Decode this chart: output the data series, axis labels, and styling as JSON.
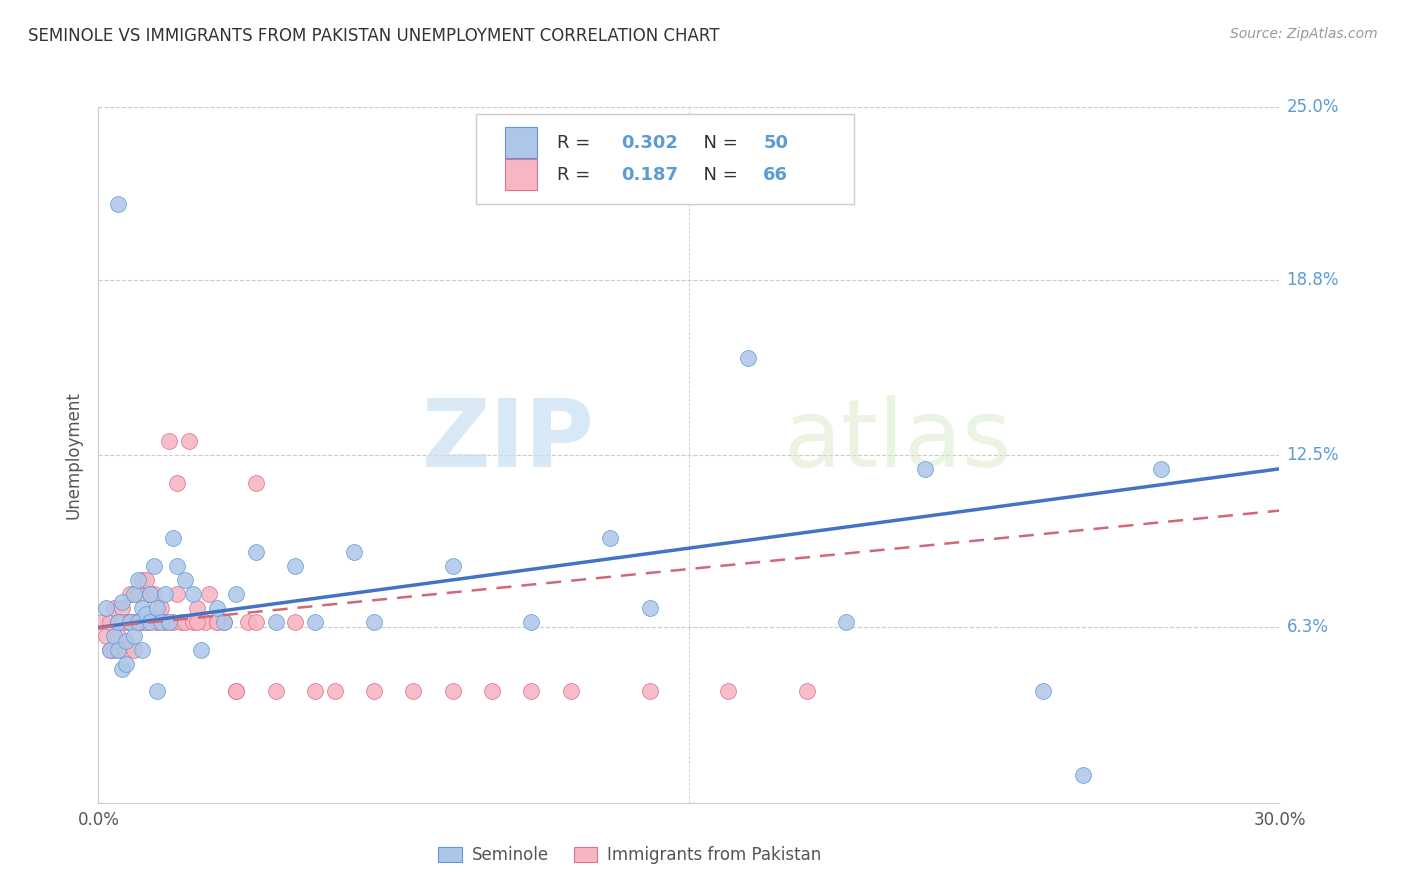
{
  "title": "SEMINOLE VS IMMIGRANTS FROM PAKISTAN UNEMPLOYMENT CORRELATION CHART",
  "source": "Source: ZipAtlas.com",
  "ylabel_label": "Unemployment",
  "ylim": [
    0,
    0.25
  ],
  "xlim": [
    0,
    0.3
  ],
  "ytick_positions": [
    0.0,
    0.063,
    0.125,
    0.188,
    0.25
  ],
  "ytick_labels_right": [
    "",
    "6.3%",
    "12.5%",
    "18.8%",
    "25.0%"
  ],
  "xtick_positions": [
    0.0,
    0.05,
    0.1,
    0.15,
    0.2,
    0.25,
    0.3
  ],
  "xtick_labels": [
    "0.0%",
    "",
    "",
    "",
    "",
    "",
    "30.0%"
  ],
  "watermark_zip": "ZIP",
  "watermark_atlas": "atlas",
  "legend_r1_val": "0.302",
  "legend_n1_val": "50",
  "legend_r2_val": "0.187",
  "legend_n2_val": "66",
  "color_seminole_fill": "#aec6e8",
  "color_seminole_edge": "#5b9bd5",
  "color_pakistan_fill": "#f7b6c2",
  "color_pakistan_edge": "#e07090",
  "color_line_seminole": "#4472c4",
  "color_line_pakistan": "#d06878",
  "color_blue_text": "#5b9bd5",
  "background_color": "#ffffff",
  "grid_color": "#cccccc",
  "title_color": "#333333",
  "source_color": "#999999",
  "seminole_x": [
    0.002,
    0.003,
    0.004,
    0.005,
    0.005,
    0.006,
    0.006,
    0.007,
    0.008,
    0.009,
    0.009,
    0.01,
    0.01,
    0.011,
    0.011,
    0.012,
    0.013,
    0.013,
    0.014,
    0.015,
    0.016,
    0.017,
    0.018,
    0.019,
    0.02,
    0.022,
    0.024,
    0.026,
    0.03,
    0.032,
    0.035,
    0.04,
    0.045,
    0.05,
    0.055,
    0.065,
    0.07,
    0.09,
    0.11,
    0.13,
    0.14,
    0.165,
    0.19,
    0.21,
    0.24,
    0.27,
    0.005,
    0.007,
    0.015,
    0.25
  ],
  "seminole_y": [
    0.07,
    0.055,
    0.06,
    0.065,
    0.055,
    0.072,
    0.048,
    0.058,
    0.065,
    0.075,
    0.06,
    0.08,
    0.065,
    0.07,
    0.055,
    0.068,
    0.075,
    0.065,
    0.085,
    0.07,
    0.065,
    0.075,
    0.065,
    0.095,
    0.085,
    0.08,
    0.075,
    0.055,
    0.07,
    0.065,
    0.075,
    0.09,
    0.065,
    0.085,
    0.065,
    0.09,
    0.065,
    0.085,
    0.065,
    0.095,
    0.07,
    0.16,
    0.065,
    0.12,
    0.04,
    0.12,
    0.215,
    0.05,
    0.04,
    0.01
  ],
  "pakistan_x": [
    0.001,
    0.002,
    0.003,
    0.003,
    0.004,
    0.004,
    0.005,
    0.005,
    0.006,
    0.006,
    0.007,
    0.007,
    0.008,
    0.008,
    0.009,
    0.009,
    0.01,
    0.01,
    0.011,
    0.011,
    0.012,
    0.012,
    0.013,
    0.013,
    0.014,
    0.015,
    0.016,
    0.017,
    0.018,
    0.019,
    0.02,
    0.021,
    0.022,
    0.023,
    0.024,
    0.025,
    0.027,
    0.028,
    0.03,
    0.032,
    0.035,
    0.038,
    0.04,
    0.045,
    0.05,
    0.055,
    0.06,
    0.07,
    0.08,
    0.09,
    0.1,
    0.11,
    0.12,
    0.14,
    0.16,
    0.18,
    0.02,
    0.025,
    0.03,
    0.035,
    0.04,
    0.006,
    0.008,
    0.01,
    0.012,
    0.015
  ],
  "pakistan_y": [
    0.065,
    0.06,
    0.065,
    0.055,
    0.07,
    0.055,
    0.065,
    0.06,
    0.07,
    0.055,
    0.065,
    0.055,
    0.075,
    0.065,
    0.065,
    0.055,
    0.075,
    0.065,
    0.08,
    0.065,
    0.08,
    0.065,
    0.075,
    0.065,
    0.075,
    0.065,
    0.07,
    0.065,
    0.13,
    0.065,
    0.075,
    0.065,
    0.065,
    0.13,
    0.065,
    0.07,
    0.065,
    0.075,
    0.065,
    0.065,
    0.04,
    0.065,
    0.065,
    0.04,
    0.065,
    0.04,
    0.04,
    0.04,
    0.04,
    0.04,
    0.04,
    0.04,
    0.04,
    0.04,
    0.04,
    0.04,
    0.115,
    0.065,
    0.065,
    0.04,
    0.115,
    0.065,
    0.065,
    0.065,
    0.065,
    0.065
  ],
  "line1_x": [
    0.0,
    0.3
  ],
  "line1_y": [
    0.063,
    0.12
  ],
  "line2_x": [
    0.0,
    0.3
  ],
  "line2_y": [
    0.063,
    0.105
  ]
}
